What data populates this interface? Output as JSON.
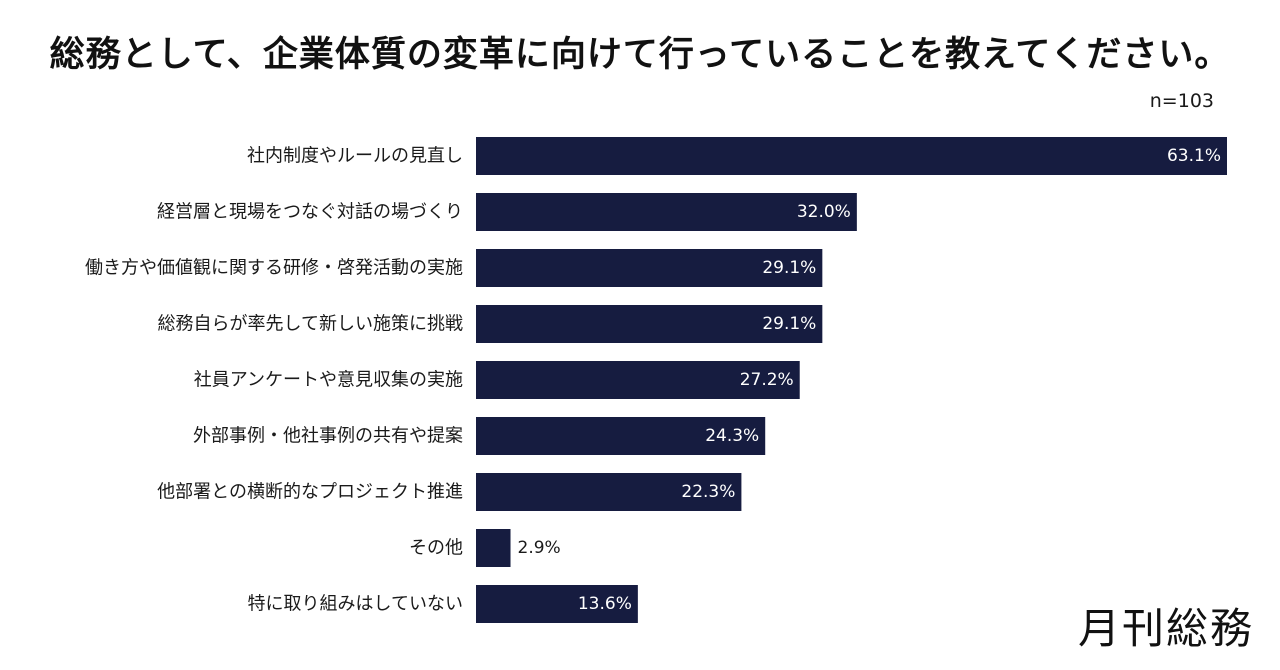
{
  "title": "総務として、企業体質の変革に向けて行っていることを教えてください。",
  "sample_size": "n=103",
  "brand": "月刊総務",
  "colors": {
    "bar": "#161c40",
    "label_inside": "#ffffff",
    "label_outside": "#1a1a1a"
  },
  "chart_data": {
    "type": "bar",
    "orientation": "horizontal",
    "categories": [
      "社内制度やルールの見直し",
      "経営層と現場をつなぐ対話の場づくり",
      "働き方や価値観に関する研修・啓発活動の実施",
      "総務自らが率先して新しい施策に挑戦",
      "社員アンケートや意見収集の実施",
      "外部事例・他社事例の共有や提案",
      "他部署との横断的なプロジェクト推進",
      "その他",
      "特に取り組みはしていない"
    ],
    "values": [
      63.1,
      32.0,
      29.1,
      29.1,
      27.2,
      24.3,
      22.3,
      2.9,
      13.6
    ],
    "value_labels": [
      "63.1%",
      "32.0%",
      "29.1%",
      "29.1%",
      "27.2%",
      "24.3%",
      "22.3%",
      "2.9%",
      "13.6%"
    ],
    "unit": "%",
    "xlim": [
      0,
      63.1
    ],
    "grid": false,
    "legend": "none"
  }
}
